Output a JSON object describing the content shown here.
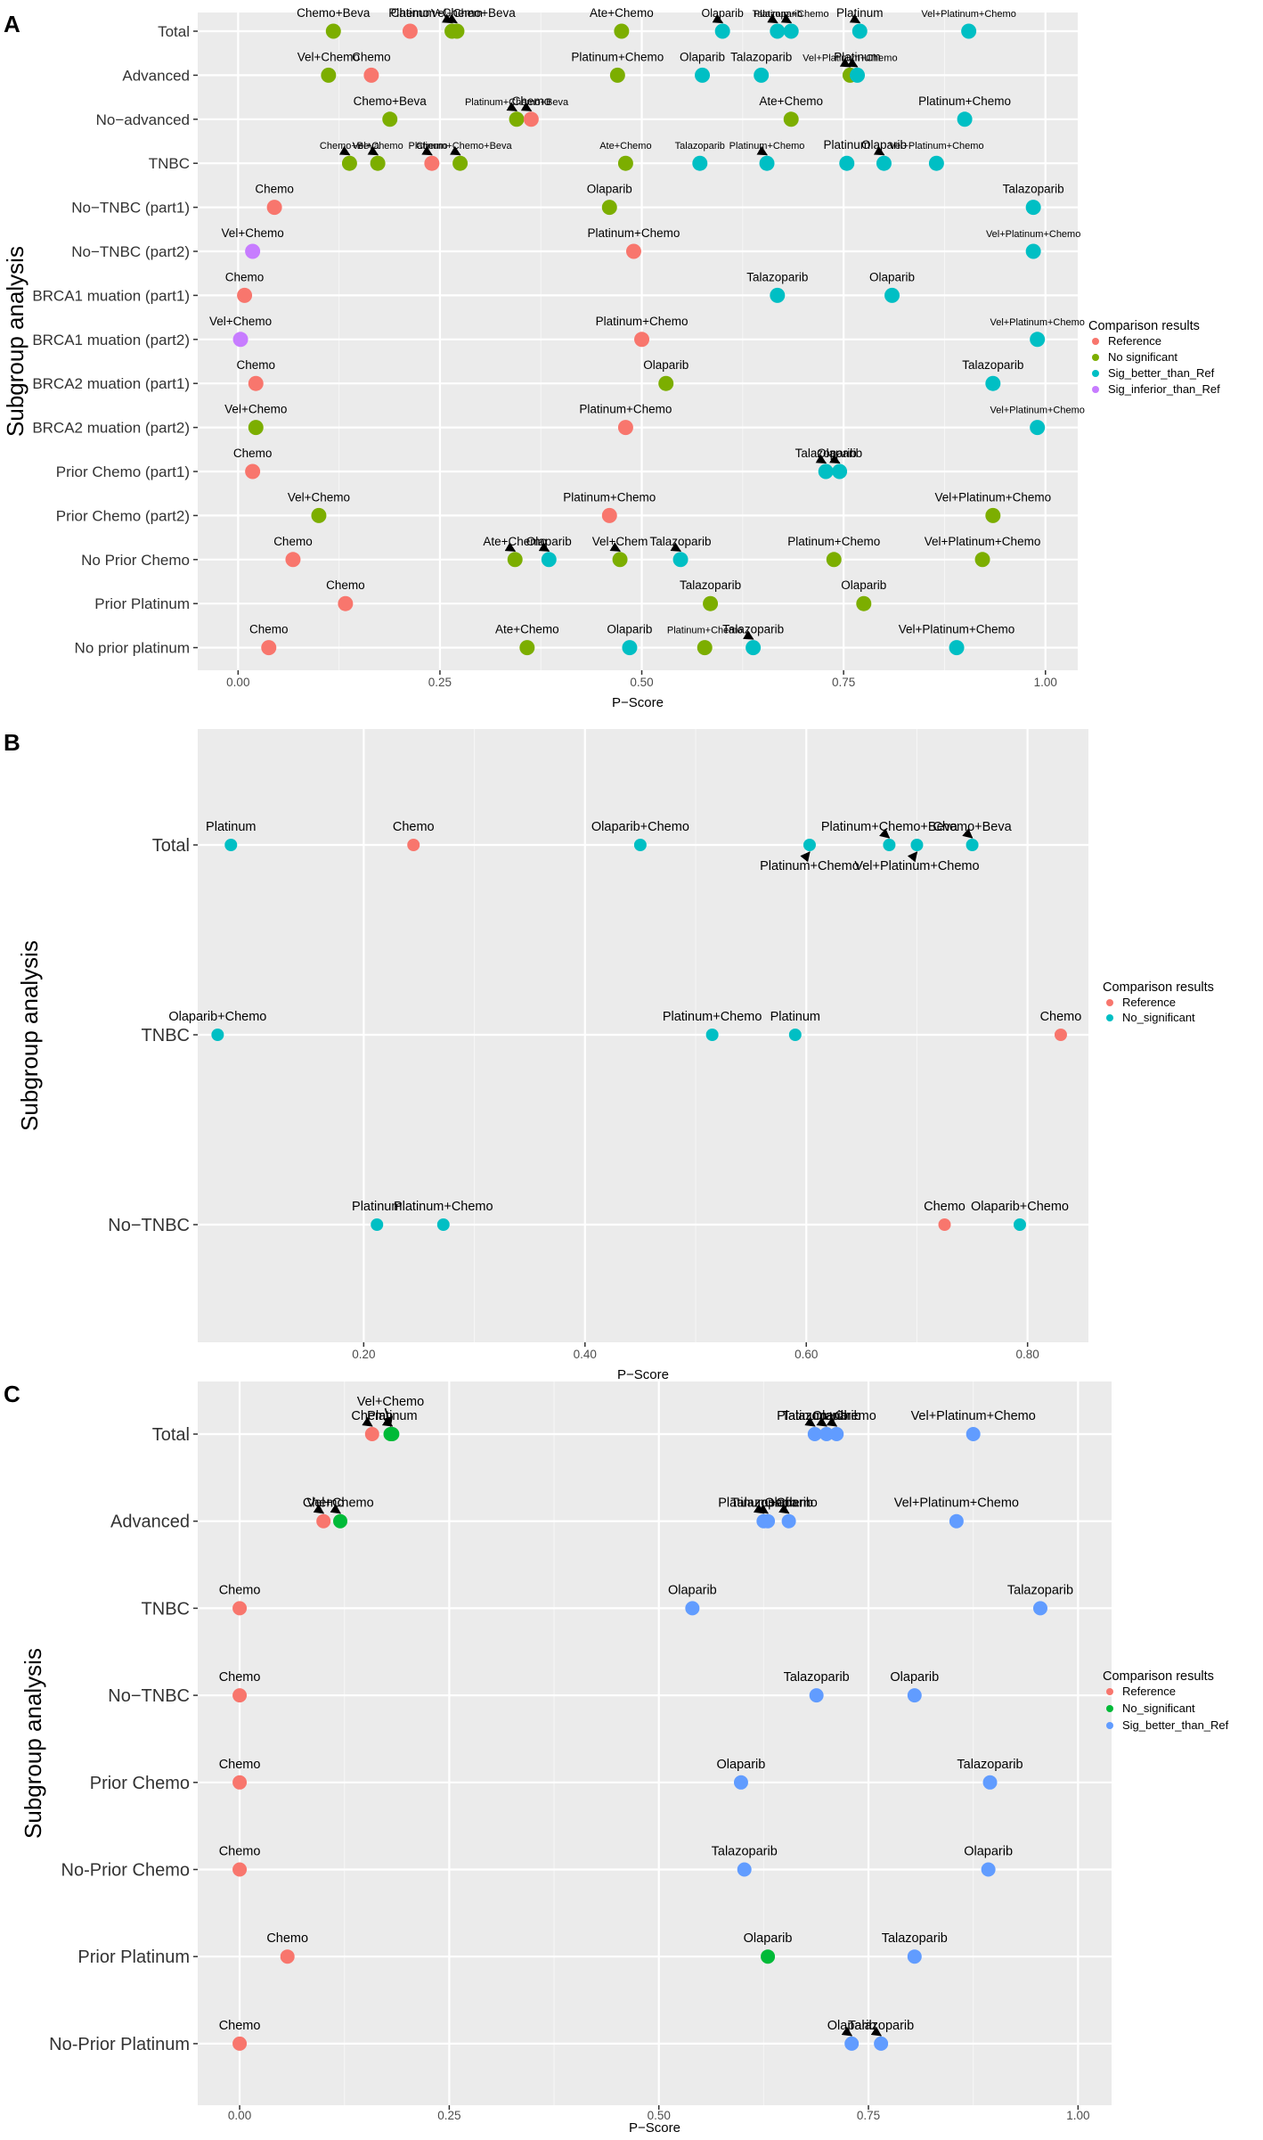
{
  "colors": {
    "panel_bg": "#ebebeb",
    "grid": "#ffffff",
    "reference": "#f8766d",
    "no_significant_3": "#7cae00",
    "sig_better_4": "#00bfc4",
    "sig_inferior": "#c77cff",
    "no_significant_c": "#00ba38",
    "sig_better_c": "#619cff"
  },
  "chart_data": [
    {
      "panel_label": "A",
      "type": "scatter",
      "xlabel": "P−Score",
      "ylabel": "Subgroup analysis",
      "xlim": [
        -0.05,
        1.04
      ],
      "xticks": [
        0.0,
        0.25,
        0.5,
        0.75,
        1.0
      ],
      "xtick_labels": [
        "0.00",
        "0.25",
        "0.50",
        "0.75",
        "1.00"
      ],
      "legend": {
        "title": "Comparison results",
        "position": "right",
        "items": [
          {
            "label": "Reference",
            "group": "ref"
          },
          {
            "label": "No significant",
            "group": "ns"
          },
          {
            "label": "Sig_better_than_Ref",
            "group": "better"
          },
          {
            "label": "Sig_inferior_than_Ref",
            "group": "inferior"
          }
        ]
      },
      "categories": [
        "Total",
        "Advanced",
        "No−advanced",
        "TNBC",
        "No−TNBC (part1)",
        "No−TNBC (part2)",
        "BRCA1 muation (part1)",
        "BRCA1 muation (part2)",
        "BRCA2 muation (part1)",
        "BRCA2 muation (part2)",
        "Prior Chemo (part1)",
        "Prior Chemo (part2)",
        "No Prior Chemo",
        "Prior Platinum",
        "No prior platinum"
      ],
      "points": [
        {
          "row": 0,
          "x": 0.118,
          "label": "Chemo+Beva",
          "group": "ns"
        },
        {
          "row": 0,
          "x": 0.213,
          "label": "Chemo",
          "group": "ref"
        },
        {
          "row": 0,
          "x": 0.265,
          "label": "Platinum+Chemo+Beva",
          "group": "ns",
          "arrow": true
        },
        {
          "row": 0,
          "x": 0.271,
          "label": "Vel+Chem",
          "group": "ns",
          "arrow": true,
          "size": "sm"
        },
        {
          "row": 0,
          "x": 0.475,
          "label": "Ate+Chemo",
          "group": "ns"
        },
        {
          "row": 0,
          "x": 0.6,
          "label": "Olaparib",
          "group": "better",
          "arrow": true,
          "size": "sm"
        },
        {
          "row": 0,
          "x": 0.668,
          "label": "Talazoparib",
          "group": "better",
          "arrow": true,
          "size": "xs"
        },
        {
          "row": 0,
          "x": 0.685,
          "label": "Platinum+Chemo",
          "group": "better",
          "arrow": true,
          "size": "xs"
        },
        {
          "row": 0,
          "x": 0.77,
          "label": "Platinum",
          "group": "better",
          "arrow": true
        },
        {
          "row": 0,
          "x": 0.905,
          "label": "Vel+Platinum+Chemo",
          "group": "better",
          "size": "xs"
        },
        {
          "row": 1,
          "x": 0.112,
          "label": "Vel+Chemo",
          "group": "ns"
        },
        {
          "row": 1,
          "x": 0.165,
          "label": "Chemo",
          "group": "ref"
        },
        {
          "row": 1,
          "x": 0.47,
          "label": "Platinum+Chemo",
          "group": "ns"
        },
        {
          "row": 1,
          "x": 0.575,
          "label": "Olaparib",
          "group": "better"
        },
        {
          "row": 1,
          "x": 0.648,
          "label": "Talazoparib",
          "group": "better"
        },
        {
          "row": 1,
          "x": 0.758,
          "label": "Vel+Platinum+Chemo",
          "group": "ns",
          "arrow": true,
          "size": "xs"
        },
        {
          "row": 1,
          "x": 0.767,
          "label": "Platinum",
          "group": "better",
          "arrow": true
        },
        {
          "row": 2,
          "x": 0.188,
          "label": "Chemo+Beva",
          "group": "ns"
        },
        {
          "row": 2,
          "x": 0.345,
          "label": "Platinum+Chemo+Beva",
          "group": "ns",
          "arrow": true,
          "size": "xs"
        },
        {
          "row": 2,
          "x": 0.363,
          "label": "Chemo",
          "group": "ref",
          "arrow": true
        },
        {
          "row": 2,
          "x": 0.685,
          "label": "Ate+Chemo",
          "group": "ns"
        },
        {
          "row": 2,
          "x": 0.9,
          "label": "Platinum+Chemo",
          "group": "better"
        },
        {
          "row": 3,
          "x": 0.138,
          "label": "Chemo+Beva",
          "group": "ns",
          "arrow": true,
          "size": "xs"
        },
        {
          "row": 3,
          "x": 0.173,
          "label": "Vel+Chemo",
          "group": "ns",
          "arrow": true,
          "size": "xs"
        },
        {
          "row": 3,
          "x": 0.24,
          "label": "Chemo",
          "group": "ref",
          "arrow": true,
          "size": "xs"
        },
        {
          "row": 3,
          "x": 0.275,
          "label": "Platinum+Chemo+Beva",
          "group": "ns",
          "arrow": true,
          "size": "xs"
        },
        {
          "row": 3,
          "x": 0.48,
          "label": "Ate+Chemo",
          "group": "ns",
          "size": "xs"
        },
        {
          "row": 3,
          "x": 0.572,
          "label": "Talazoparib",
          "group": "better",
          "size": "xs"
        },
        {
          "row": 3,
          "x": 0.655,
          "label": "Platinum+Chemo",
          "group": "better",
          "arrow": true,
          "size": "xs"
        },
        {
          "row": 3,
          "x": 0.754,
          "label": "Platinum",
          "group": "better"
        },
        {
          "row": 3,
          "x": 0.8,
          "label": "Olaparib",
          "group": "better",
          "arrow": true
        },
        {
          "row": 3,
          "x": 0.865,
          "label": "Vel+Platinum+Chemo",
          "group": "better",
          "size": "xs"
        },
        {
          "row": 4,
          "x": 0.045,
          "label": "Chemo",
          "group": "ref"
        },
        {
          "row": 4,
          "x": 0.46,
          "label": "Olaparib",
          "group": "ns"
        },
        {
          "row": 4,
          "x": 0.985,
          "label": "Talazoparib",
          "group": "better"
        },
        {
          "row": 5,
          "x": 0.018,
          "label": "Vel+Chemo",
          "group": "inferior"
        },
        {
          "row": 5,
          "x": 0.49,
          "label": "Platinum+Chemo",
          "group": "ref"
        },
        {
          "row": 5,
          "x": 0.985,
          "label": "Vel+Platinum+Chemo",
          "group": "better",
          "size": "xs"
        },
        {
          "row": 6,
          "x": 0.008,
          "label": "Chemo",
          "group": "ref"
        },
        {
          "row": 6,
          "x": 0.668,
          "label": "Talazoparib",
          "group": "better"
        },
        {
          "row": 6,
          "x": 0.81,
          "label": "Olaparib",
          "group": "better"
        },
        {
          "row": 7,
          "x": 0.003,
          "label": "Vel+Chemo",
          "group": "inferior"
        },
        {
          "row": 7,
          "x": 0.5,
          "label": "Platinum+Chemo",
          "group": "ref"
        },
        {
          "row": 7,
          "x": 0.99,
          "label": "Vel+Platinum+Chemo",
          "group": "better",
          "size": "xs"
        },
        {
          "row": 8,
          "x": 0.022,
          "label": "Chemo",
          "group": "ref"
        },
        {
          "row": 8,
          "x": 0.53,
          "label": "Olaparib",
          "group": "ns"
        },
        {
          "row": 8,
          "x": 0.935,
          "label": "Talazoparib",
          "group": "better"
        },
        {
          "row": 9,
          "x": 0.022,
          "label": "Vel+Chemo",
          "group": "ns"
        },
        {
          "row": 9,
          "x": 0.48,
          "label": "Platinum+Chemo",
          "group": "ref"
        },
        {
          "row": 9,
          "x": 0.99,
          "label": "Vel+Platinum+Chemo",
          "group": "better",
          "size": "xs"
        },
        {
          "row": 10,
          "x": 0.018,
          "label": "Chemo",
          "group": "ref"
        },
        {
          "row": 10,
          "x": 0.728,
          "label": "Talazoparib",
          "group": "better",
          "arrow": true
        },
        {
          "row": 10,
          "x": 0.745,
          "label": "Olaparib",
          "group": "better",
          "arrow": true
        },
        {
          "row": 11,
          "x": 0.1,
          "label": "Vel+Chemo",
          "group": "ns"
        },
        {
          "row": 11,
          "x": 0.46,
          "label": "Platinum+Chemo",
          "group": "ref"
        },
        {
          "row": 11,
          "x": 0.935,
          "label": "Vel+Platinum+Chemo",
          "group": "ns"
        },
        {
          "row": 12,
          "x": 0.068,
          "label": "Chemo",
          "group": "ref"
        },
        {
          "row": 12,
          "x": 0.343,
          "label": "Ate+Chemo",
          "group": "ns",
          "arrow": true
        },
        {
          "row": 12,
          "x": 0.385,
          "label": "Olaparib",
          "group": "better",
          "arrow": true
        },
        {
          "row": 12,
          "x": 0.473,
          "label": "Vel+Chem",
          "group": "ns",
          "arrow": true
        },
        {
          "row": 12,
          "x": 0.548,
          "label": "Talazoparib",
          "group": "better",
          "arrow": true
        },
        {
          "row": 12,
          "x": 0.738,
          "label": "Platinum+Chemo",
          "group": "ns"
        },
        {
          "row": 12,
          "x": 0.922,
          "label": "Vel+Platinum+Chemo",
          "group": "ns"
        },
        {
          "row": 13,
          "x": 0.133,
          "label": "Chemo",
          "group": "ref"
        },
        {
          "row": 13,
          "x": 0.585,
          "label": "Talazoparib",
          "group": "ns"
        },
        {
          "row": 13,
          "x": 0.775,
          "label": "Olaparib",
          "group": "ns"
        },
        {
          "row": 14,
          "x": 0.038,
          "label": "Chemo",
          "group": "ref"
        },
        {
          "row": 14,
          "x": 0.358,
          "label": "Ate+Chemo",
          "group": "ns"
        },
        {
          "row": 14,
          "x": 0.485,
          "label": "Olaparib",
          "group": "better"
        },
        {
          "row": 14,
          "x": 0.578,
          "label": "Platinum+Chemo",
          "group": "ns",
          "size": "xs"
        },
        {
          "row": 14,
          "x": 0.638,
          "label": "Talazoparib",
          "group": "better",
          "arrow": true
        },
        {
          "row": 14,
          "x": 0.89,
          "label": "Vel+Platinum+Chemo",
          "group": "better"
        }
      ]
    },
    {
      "panel_label": "B",
      "type": "scatter",
      "xlabel": "P−Score",
      "ylabel": "Subgroup analysis",
      "xlim": [
        0.05,
        0.855
      ],
      "xticks": [
        0.2,
        0.4,
        0.6,
        0.8
      ],
      "xtick_labels": [
        "0.20",
        "0.40",
        "0.60",
        "0.80"
      ],
      "legend": {
        "title": "Comparison results",
        "position": "right",
        "items": [
          {
            "label": "Reference",
            "group": "ref"
          },
          {
            "label": "No_significant",
            "group": "ns"
          }
        ]
      },
      "categories": [
        "Total",
        "TNBC",
        "No−TNBC"
      ],
      "points": [
        {
          "row": 0,
          "x": 0.08,
          "label": "Platinum",
          "group": "ns"
        },
        {
          "row": 0,
          "x": 0.245,
          "label": "Chemo",
          "group": "ref"
        },
        {
          "row": 0,
          "x": 0.45,
          "label": "Olaparib+Chemo",
          "group": "ns"
        },
        {
          "row": 0,
          "x": 0.603,
          "label": "Platinum+Chemo",
          "group": "ns",
          "arrow": true,
          "below": true
        },
        {
          "row": 0,
          "x": 0.675,
          "label": "Platinum+Chemo+Beva",
          "group": "ns",
          "arrow": true
        },
        {
          "row": 0,
          "x": 0.7,
          "label": "Vel+Platinum+Chemo",
          "group": "ns",
          "arrow": true,
          "below": true
        },
        {
          "row": 0,
          "x": 0.75,
          "label": "Chemo+Beva",
          "group": "ns",
          "arrow": true
        },
        {
          "row": 1,
          "x": 0.068,
          "label": "Olaparib+Chemo",
          "group": "ns"
        },
        {
          "row": 1,
          "x": 0.515,
          "label": "Platinum+Chemo",
          "group": "ns"
        },
        {
          "row": 1,
          "x": 0.59,
          "label": "Platinum",
          "group": "ns"
        },
        {
          "row": 1,
          "x": 0.83,
          "label": "Chemo",
          "group": "ref"
        },
        {
          "row": 2,
          "x": 0.212,
          "label": "Platinum",
          "group": "ns"
        },
        {
          "row": 2,
          "x": 0.272,
          "label": "Platinum+Chemo",
          "group": "ns"
        },
        {
          "row": 2,
          "x": 0.725,
          "label": "Chemo",
          "group": "ref"
        },
        {
          "row": 2,
          "x": 0.793,
          "label": "Olaparib+Chemo",
          "group": "ns"
        }
      ]
    },
    {
      "panel_label": "C",
      "type": "scatter",
      "xlabel": "P−Score",
      "ylabel": "Subgroup analysis",
      "xlim": [
        -0.05,
        1.04
      ],
      "xticks": [
        0.0,
        0.25,
        0.5,
        0.75,
        1.0
      ],
      "xtick_labels": [
        "0.00",
        "0.25",
        "0.50",
        "0.75",
        "1.00"
      ],
      "legend": {
        "title": "Comparison results",
        "position": "right",
        "items": [
          {
            "label": "Reference",
            "group": "ref"
          },
          {
            "label": "No_significant",
            "group": "ns"
          },
          {
            "label": "Sig_better_than_Ref",
            "group": "better"
          }
        ]
      },
      "categories": [
        "Total",
        "Advanced",
        "TNBC",
        "No−TNBC",
        "Prior Chemo",
        "No-Prior Chemo",
        "Prior Platinum",
        "No-Prior Platinum"
      ],
      "points": [
        {
          "row": 0,
          "x": 0.158,
          "label": "Chemo",
          "group": "ref",
          "arrow": true
        },
        {
          "row": 0,
          "x": 0.18,
          "label": "Vel+Chemo",
          "group": "ns",
          "arrow": true,
          "second": true
        },
        {
          "row": 0,
          "x": 0.182,
          "label": "Platinum",
          "group": "ns",
          "arrow": true
        },
        {
          "row": 0,
          "x": 0.686,
          "label": "Talazoparib",
          "group": "better",
          "arrow": true
        },
        {
          "row": 0,
          "x": 0.7,
          "label": "Platinum+Chemo",
          "group": "better",
          "arrow": true
        },
        {
          "row": 0,
          "x": 0.712,
          "label": "Olaparib",
          "group": "better",
          "arrow": true
        },
        {
          "row": 0,
          "x": 0.875,
          "label": "Vel+Platinum+Chemo",
          "group": "better"
        },
        {
          "row": 1,
          "x": 0.1,
          "label": "Chemo",
          "group": "ref",
          "arrow": true
        },
        {
          "row": 1,
          "x": 0.12,
          "label": "Vel+Chemo",
          "group": "ns",
          "arrow": true
        },
        {
          "row": 1,
          "x": 0.625,
          "label": "Talazoparib",
          "group": "better",
          "arrow": true
        },
        {
          "row": 1,
          "x": 0.63,
          "label": "Platinum+Chemo",
          "group": "better",
          "arrow": true
        },
        {
          "row": 1,
          "x": 0.655,
          "label": "Olaparib",
          "group": "better",
          "arrow": true
        },
        {
          "row": 1,
          "x": 0.855,
          "label": "Vel+Platinum+Chemo",
          "group": "better"
        },
        {
          "row": 2,
          "x": 0.0,
          "label": "Chemo",
          "group": "ref"
        },
        {
          "row": 2,
          "x": 0.54,
          "label": "Olaparib",
          "group": "better"
        },
        {
          "row": 2,
          "x": 0.955,
          "label": "Talazoparib",
          "group": "better"
        },
        {
          "row": 3,
          "x": 0.0,
          "label": "Chemo",
          "group": "ref"
        },
        {
          "row": 3,
          "x": 0.688,
          "label": "Talazoparib",
          "group": "better"
        },
        {
          "row": 3,
          "x": 0.805,
          "label": "Olaparib",
          "group": "better"
        },
        {
          "row": 4,
          "x": 0.0,
          "label": "Chemo",
          "group": "ref"
        },
        {
          "row": 4,
          "x": 0.598,
          "label": "Olaparib",
          "group": "better"
        },
        {
          "row": 4,
          "x": 0.895,
          "label": "Talazoparib",
          "group": "better"
        },
        {
          "row": 5,
          "x": 0.0,
          "label": "Chemo",
          "group": "ref"
        },
        {
          "row": 5,
          "x": 0.602,
          "label": "Talazoparib",
          "group": "better"
        },
        {
          "row": 5,
          "x": 0.893,
          "label": "Olaparib",
          "group": "better"
        },
        {
          "row": 6,
          "x": 0.057,
          "label": "Chemo",
          "group": "ref"
        },
        {
          "row": 6,
          "x": 0.63,
          "label": "Olaparib",
          "group": "ns"
        },
        {
          "row": 6,
          "x": 0.805,
          "label": "Talazoparib",
          "group": "better"
        },
        {
          "row": 7,
          "x": 0.0,
          "label": "Chemo",
          "group": "ref"
        },
        {
          "row": 7,
          "x": 0.73,
          "label": "Olaparib",
          "group": "better",
          "arrow": true
        },
        {
          "row": 7,
          "x": 0.765,
          "label": "Talazoparib",
          "group": "better",
          "arrow": true
        }
      ]
    }
  ]
}
